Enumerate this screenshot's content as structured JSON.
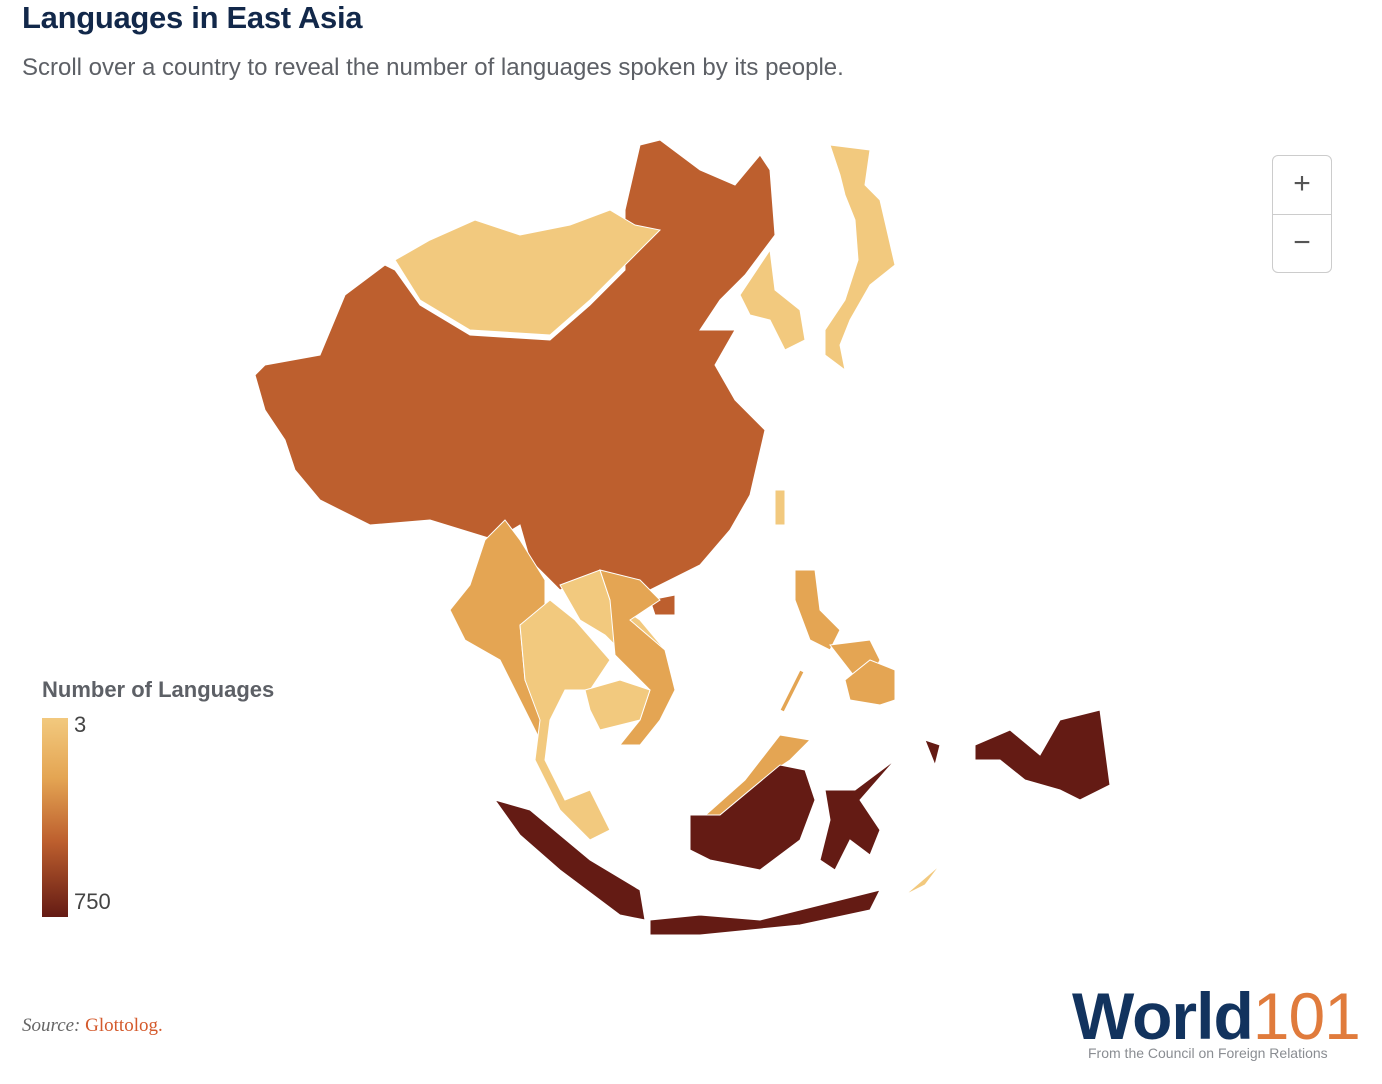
{
  "header": {
    "title": "Languages in East Asia",
    "subtitle": "Scroll over a country to reveal the number of languages spoken by its people."
  },
  "legend": {
    "title": "Number of Languages",
    "min_label": "3",
    "max_label": "750"
  },
  "zoom": {
    "in": "+",
    "out": "−"
  },
  "source": {
    "label": "Source:",
    "link": "Glottolog."
  },
  "logo": {
    "word": "World",
    "number": "101",
    "tagline": "From the Council on Foreign Relations"
  }
}
